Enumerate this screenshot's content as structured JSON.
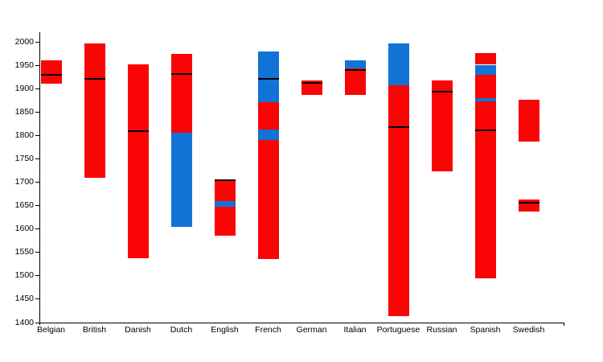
{
  "chart_data": {
    "type": "bar",
    "variant": "stacked-floating-range-bars",
    "title": "",
    "xlabel": "",
    "ylabel": "",
    "ylim": [
      1400,
      2000
    ],
    "ytick_step": 50,
    "yticks": [
      2000,
      1950,
      1900,
      1850,
      1800,
      1750,
      1700,
      1650,
      1600,
      1550,
      1500,
      1450,
      1400
    ],
    "categories": [
      "Belgian",
      "British",
      "Danish",
      "Dutch",
      "English",
      "French",
      "German",
      "Italian",
      "Portuguese",
      "Russian",
      "Spanish",
      "Swedish"
    ],
    "colors": {
      "red": "#fa0505",
      "blue": "#1273d6",
      "marker": "#000000",
      "axis": "#000000",
      "background": "#ffffff"
    },
    "legend": null,
    "grid": false,
    "bars": [
      {
        "category": "Belgian",
        "marker": 1930,
        "segments": [
          {
            "from": 1911,
            "to": 1960,
            "color": "red"
          }
        ]
      },
      {
        "category": "British",
        "marker": 1921,
        "segments": [
          {
            "from": 1710,
            "to": 1996,
            "color": "red"
          }
        ]
      },
      {
        "category": "Danish",
        "marker": 1810,
        "segments": [
          {
            "from": 1538,
            "to": 1952,
            "color": "red"
          }
        ]
      },
      {
        "category": "Dutch",
        "marker": 1931,
        "segments": [
          {
            "from": 1604,
            "to": 1805,
            "color": "blue"
          },
          {
            "from": 1805,
            "to": 1975,
            "color": "red"
          }
        ]
      },
      {
        "category": "English",
        "marker": 1704,
        "segments": [
          {
            "from": 1586,
            "to": 1647,
            "color": "red"
          },
          {
            "from": 1647,
            "to": 1660,
            "color": "blue"
          },
          {
            "from": 1660,
            "to": 1705,
            "color": "red"
          }
        ]
      },
      {
        "category": "French",
        "marker": 1921,
        "segments": [
          {
            "from": 1536,
            "to": 1791,
            "color": "red"
          },
          {
            "from": 1791,
            "to": 1812,
            "color": "blue"
          },
          {
            "from": 1812,
            "to": 1871,
            "color": "red"
          },
          {
            "from": 1871,
            "to": 1979,
            "color": "blue"
          }
        ]
      },
      {
        "category": "German",
        "marker": 1912,
        "segments": [
          {
            "from": 1887,
            "to": 1918,
            "color": "red"
          }
        ]
      },
      {
        "category": "Italian",
        "marker": 1940,
        "segments": [
          {
            "from": 1887,
            "to": 1943,
            "color": "red"
          },
          {
            "from": 1943,
            "to": 1961,
            "color": "blue"
          }
        ]
      },
      {
        "category": "Portuguese",
        "marker": 1817,
        "segments": [
          {
            "from": 1414,
            "to": 1908,
            "color": "red"
          },
          {
            "from": 1908,
            "to": 1997,
            "color": "blue"
          }
        ]
      },
      {
        "category": "Russian",
        "marker": 1894,
        "segments": [
          {
            "from": 1723,
            "to": 1917,
            "color": "red"
          }
        ]
      },
      {
        "category": "Spanish",
        "marker": 1811,
        "segments": [
          {
            "from": 1495,
            "to": 1873,
            "color": "red"
          },
          {
            "from": 1873,
            "to": 1880,
            "color": "blue"
          },
          {
            "from": 1880,
            "to": 1930,
            "color": "red"
          },
          {
            "from": 1930,
            "to": 1951,
            "color": "blue"
          },
          {
            "from": 1951,
            "to": 1976,
            "color": "red"
          }
        ]
      },
      {
        "category": "Swedish",
        "marker": 1657,
        "segments": [
          {
            "from": 1637,
            "to": 1663,
            "color": "red"
          },
          {
            "from": 1786,
            "to": 1877,
            "color": "red"
          }
        ]
      }
    ]
  }
}
